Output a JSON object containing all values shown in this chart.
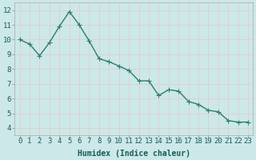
{
  "x": [
    0,
    1,
    2,
    3,
    4,
    5,
    6,
    7,
    8,
    9,
    10,
    11,
    12,
    13,
    14,
    15,
    16,
    17,
    18,
    19,
    20,
    21,
    22,
    23
  ],
  "y": [
    10.0,
    9.7,
    8.9,
    9.8,
    10.9,
    11.9,
    11.0,
    9.9,
    8.7,
    8.5,
    8.2,
    7.9,
    7.2,
    7.2,
    6.2,
    6.6,
    6.5,
    5.8,
    5.6,
    5.2,
    5.1,
    4.5,
    4.4,
    4.4
  ],
  "line_color": "#2e7d6e",
  "marker_color": "#2e7d6e",
  "bg_color": "#cce8e8",
  "grid_color_h": "#e8c8c8",
  "grid_color_v": "#e8c8c8",
  "xlabel": "Humidex (Indice chaleur)",
  "xlim": [
    -0.5,
    23.5
  ],
  "ylim": [
    3.5,
    12.5
  ],
  "yticks": [
    4,
    5,
    6,
    7,
    8,
    9,
    10,
    11,
    12
  ],
  "xtick_labels": [
    "0",
    "1",
    "2",
    "3",
    "4",
    "5",
    "6",
    "7",
    "8",
    "9",
    "10",
    "11",
    "12",
    "13",
    "14",
    "15",
    "16",
    "17",
    "18",
    "19",
    "20",
    "21",
    "22",
    "23"
  ],
  "xlabel_fontsize": 7,
  "tick_fontsize": 6.5,
  "linewidth": 1.0,
  "markersize": 2.5
}
